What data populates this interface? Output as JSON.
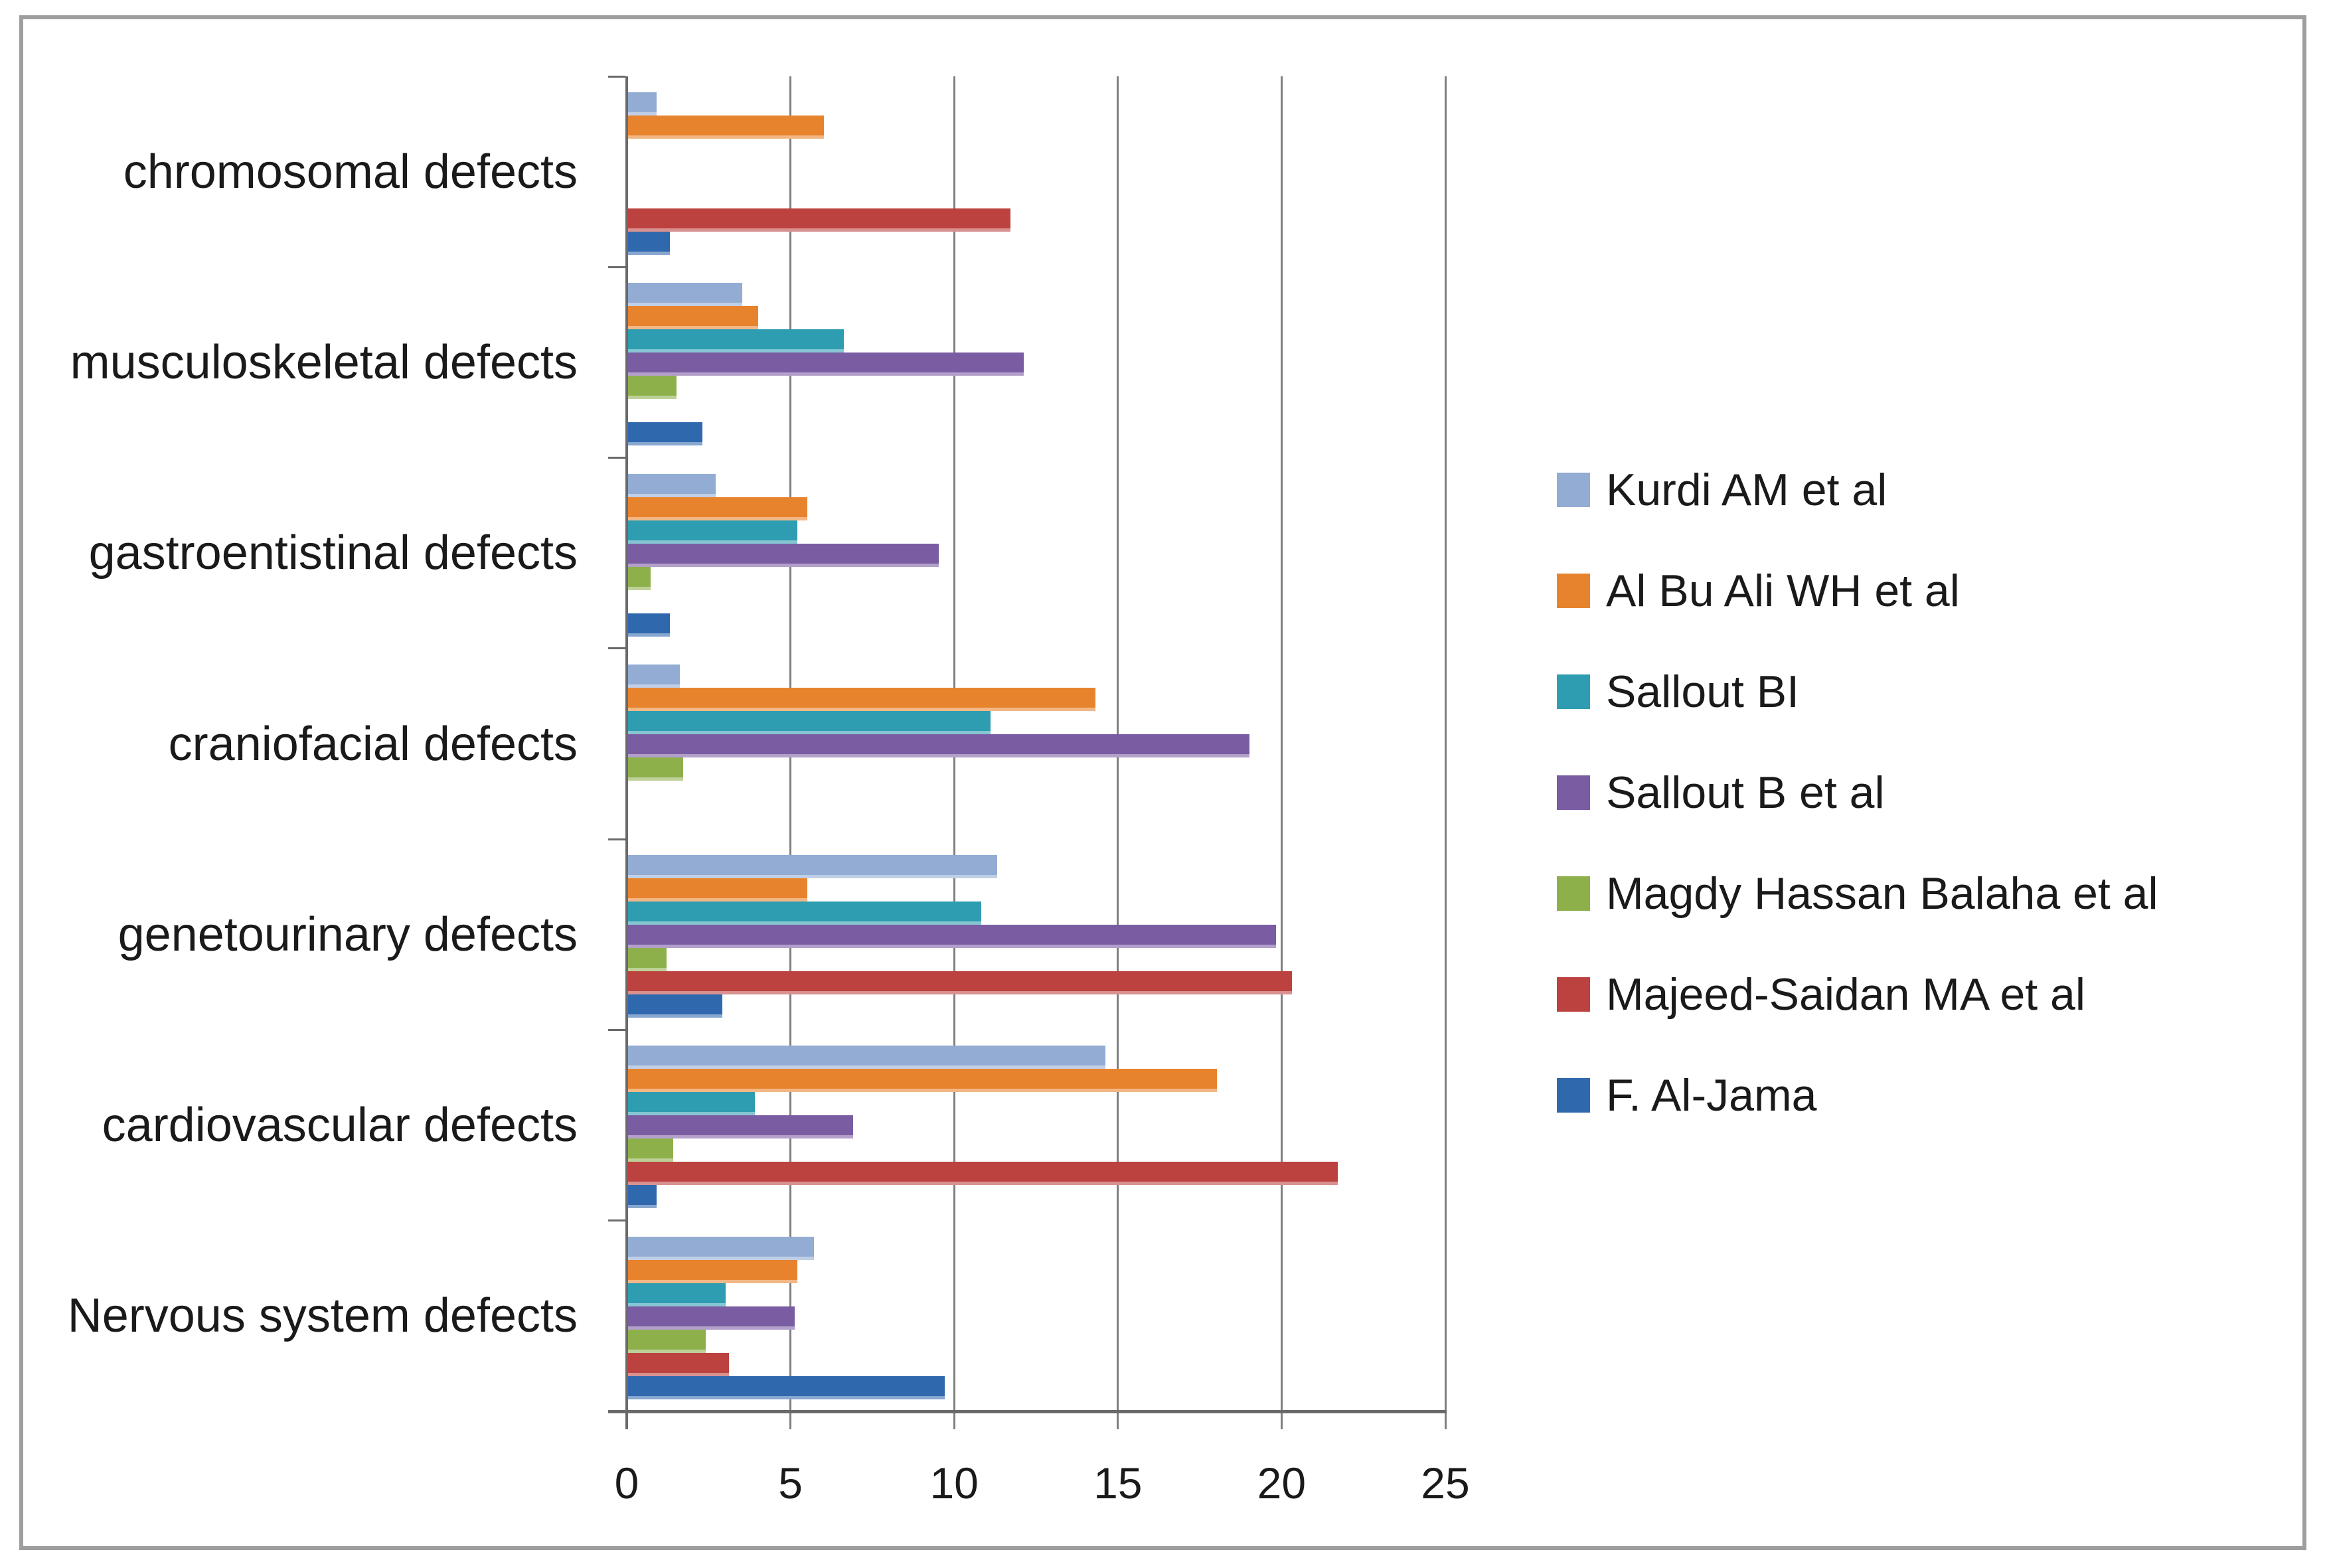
{
  "chart_data": {
    "type": "bar",
    "orientation": "horizontal",
    "title": "",
    "xlabel": "",
    "ylabel": "",
    "xlim": [
      0,
      25
    ],
    "x_ticks": [
      0,
      5,
      10,
      15,
      20,
      25
    ],
    "grid": "vertical",
    "legend_position": "right",
    "categories": [
      "chromosomal defects",
      "musculoskeletal defects",
      "gastroentistinal defects",
      "craniofacial defects",
      "genetourinary defects",
      "cardiovascular defects",
      "Nervous system defects"
    ],
    "series": [
      {
        "name": "Kurdi  AM et al",
        "color": "#92ACD4",
        "values": [
          0.9,
          3.5,
          2.7,
          1.6,
          11.3,
          14.6,
          5.7
        ]
      },
      {
        "name": "Al Bu Ali WH  et al",
        "color": "#E8832D",
        "values": [
          6.0,
          4.0,
          5.5,
          14.3,
          5.5,
          18.0,
          5.2
        ]
      },
      {
        "name": "Sallout BI",
        "color": "#2E9DB1",
        "values": [
          0,
          6.6,
          5.2,
          11.1,
          10.8,
          3.9,
          3.0
        ]
      },
      {
        "name": "Sallout B et al",
        "color": "#7A5CA3",
        "values": [
          0,
          12.1,
          9.5,
          19.0,
          19.8,
          6.9,
          5.1
        ]
      },
      {
        "name": "Magdy Hassan Balaha et al",
        "color": "#8DB04B",
        "values": [
          0,
          1.5,
          0.7,
          1.7,
          1.2,
          1.4,
          2.4
        ]
      },
      {
        "name": "Majeed-Saidan MA et al",
        "color": "#BC4240",
        "values": [
          11.7,
          0,
          0,
          0,
          20.3,
          21.7,
          3.1
        ]
      },
      {
        "name": "F. Al-Jama",
        "color": "#3068AE",
        "values": [
          1.3,
          2.3,
          1.3,
          0,
          2.9,
          0.9,
          9.7
        ]
      }
    ],
    "style": {
      "gridline_color": "#7F7F7F",
      "axis_color": "#6A6A6A",
      "border_color": "#9E9E9E",
      "text_color": "#1A1A1A",
      "background_color": "#FFFFFF"
    }
  }
}
